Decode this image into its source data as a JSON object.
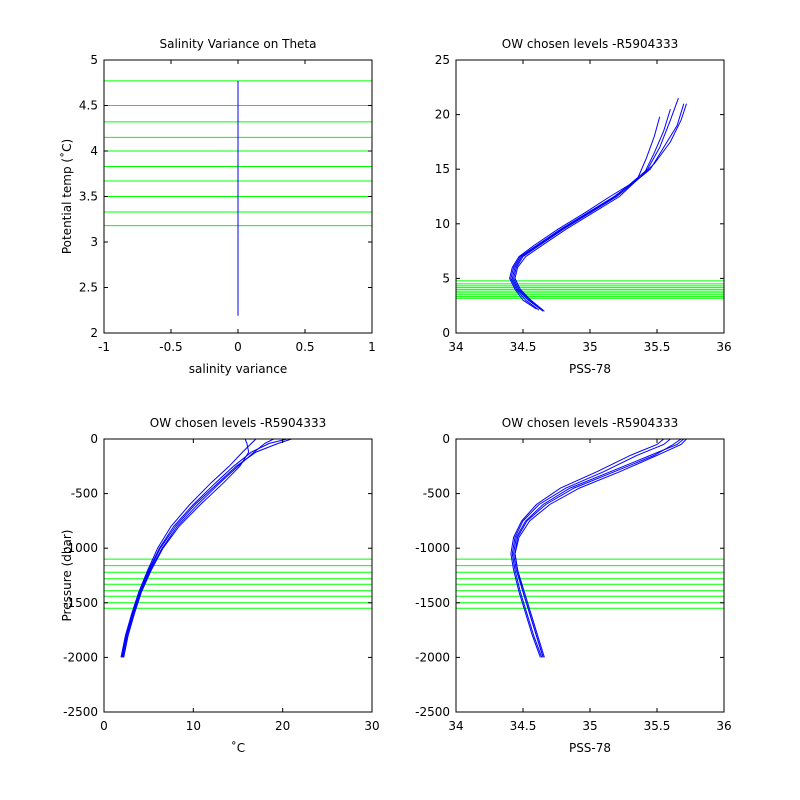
{
  "figure": {
    "background": "#ffffff",
    "profile_color": "#0000ff",
    "level_color": "#00ff00"
  },
  "chart_data": [
    {
      "type": "line",
      "title": "Salinity Variance on Theta",
      "xlabel": "salinity variance",
      "ylabel": "Potential temp (˚C)",
      "xlim": [
        -1,
        1
      ],
      "ylim": [
        2,
        5
      ],
      "xticks": [
        -1,
        -0.5,
        0,
        0.5,
        1
      ],
      "xtick_labels": [
        "-1",
        "-0.5",
        "0",
        "0.5",
        "1"
      ],
      "yticks": [
        2,
        2.5,
        3,
        3.5,
        4,
        4.5,
        5
      ],
      "ytick_labels": [
        "2",
        "2.5",
        "3",
        "3.5",
        "4",
        "4.5",
        "5"
      ],
      "grid": false,
      "legend": "none",
      "series": [
        {
          "x": [
            0,
            0
          ],
          "y": [
            2.19,
            4.77
          ]
        }
      ],
      "hlines": [
        3.18,
        3.33,
        3.5,
        3.67,
        3.83,
        4.0,
        4.15,
        4.32,
        4.5,
        4.77
      ]
    },
    {
      "type": "line",
      "title": "OW chosen levels -R5904333",
      "xlabel": "PSS-78",
      "ylabel": "",
      "xlim": [
        34,
        36
      ],
      "ylim": [
        0,
        25
      ],
      "xticks": [
        34,
        34.5,
        35,
        35.5,
        36
      ],
      "xtick_labels": [
        "34",
        "34.5",
        "35",
        "35.5",
        "36"
      ],
      "yticks": [
        0,
        5,
        10,
        15,
        20,
        25
      ],
      "ytick_labels": [
        "0",
        "5",
        "10",
        "15",
        "20",
        "25"
      ],
      "grid": false,
      "legend": "none",
      "series": [
        {
          "x": [
            34.65,
            34.55,
            34.47,
            34.43,
            34.45,
            34.5,
            34.62,
            34.8,
            35.0,
            35.2,
            35.45,
            35.55,
            35.65,
            35.7
          ],
          "y": [
            2.0,
            3.0,
            4.0,
            5.0,
            6.0,
            7.0,
            8.0,
            9.5,
            11.0,
            12.5,
            15.0,
            17.0,
            19.0,
            21.0
          ]
        },
        {
          "x": [
            34.62,
            34.52,
            34.45,
            34.41,
            34.43,
            34.48,
            34.6,
            34.78,
            34.98,
            35.18,
            35.4,
            35.48,
            35.55,
            35.6
          ],
          "y": [
            2.1,
            3.0,
            4.0,
            5.0,
            6.0,
            7.0,
            8.0,
            9.5,
            11.0,
            12.5,
            14.5,
            16.5,
            18.5,
            20.5
          ]
        },
        {
          "x": [
            34.66,
            34.56,
            34.48,
            34.44,
            34.46,
            34.52,
            34.64,
            34.82,
            35.02,
            35.22,
            35.48,
            35.6,
            35.68,
            35.72
          ],
          "y": [
            2.0,
            3.0,
            4.0,
            5.0,
            6.0,
            7.0,
            8.0,
            9.5,
            11.0,
            12.5,
            15.5,
            17.5,
            19.5,
            21.0
          ]
        },
        {
          "x": [
            34.6,
            34.5,
            34.44,
            34.4,
            34.42,
            34.47,
            34.58,
            34.76,
            34.96,
            35.15,
            35.35,
            35.42,
            35.48,
            35.52
          ],
          "y": [
            2.2,
            3.0,
            4.0,
            5.0,
            6.0,
            7.0,
            8.0,
            9.5,
            11.0,
            12.5,
            14.0,
            16.0,
            18.0,
            19.8
          ]
        },
        {
          "x": [
            34.64,
            34.54,
            34.46,
            34.42,
            34.44,
            34.49,
            34.61,
            34.79,
            34.99,
            35.19,
            35.43,
            35.52,
            35.6,
            35.66
          ],
          "y": [
            2.1,
            3.0,
            4.0,
            5.0,
            6.0,
            7.0,
            8.0,
            9.5,
            11.0,
            12.5,
            15.0,
            17.0,
            19.5,
            21.5
          ]
        }
      ],
      "hlines": [
        3.18,
        3.33,
        3.5,
        3.67,
        3.83,
        4.0,
        4.15,
        4.32,
        4.5,
        4.77
      ]
    },
    {
      "type": "line",
      "title": "OW chosen levels -R5904333",
      "xlabel": "˚C",
      "ylabel": "Pressure (dbar)",
      "xlim": [
        0,
        30
      ],
      "ylim": [
        -2500,
        0
      ],
      "xticks": [
        0,
        10,
        20,
        30
      ],
      "xtick_labels": [
        "0",
        "10",
        "20",
        "30"
      ],
      "yticks": [
        -2500,
        -2000,
        -1500,
        -1000,
        -500,
        0
      ],
      "ytick_labels": [
        "-2500",
        "-2000",
        "-1500",
        "-1000",
        "-500",
        "0"
      ],
      "grid": false,
      "legend": "none",
      "series": [
        {
          "x": [
            2.0,
            2.5,
            3.2,
            4.0,
            5.0,
            6.2,
            7.8,
            10.0,
            12.5,
            14.5,
            16.5,
            18.5,
            20.5
          ],
          "y": [
            -2000,
            -1800,
            -1600,
            -1400,
            -1200,
            -1000,
            -800,
            -600,
            -400,
            -250,
            -120,
            -40,
            0
          ]
        },
        {
          "x": [
            2.1,
            2.6,
            3.3,
            4.1,
            5.2,
            6.5,
            8.2,
            10.5,
            13.0,
            15.0,
            16.8,
            18.0,
            19.0
          ],
          "y": [
            -2000,
            -1800,
            -1600,
            -1400,
            -1200,
            -1000,
            -800,
            -600,
            -400,
            -250,
            -120,
            -40,
            0
          ]
        },
        {
          "x": [
            1.9,
            2.4,
            3.1,
            3.9,
            4.9,
            6.0,
            7.5,
            9.6,
            12.0,
            14.0,
            15.5,
            16.5,
            17.0
          ],
          "y": [
            -2000,
            -1800,
            -1600,
            -1400,
            -1200,
            -1000,
            -800,
            -600,
            -400,
            -250,
            -120,
            -40,
            0
          ]
        },
        {
          "x": [
            2.0,
            2.5,
            3.2,
            4.1,
            5.1,
            6.3,
            8.0,
            10.2,
            12.8,
            14.8,
            17.0,
            19.5,
            21.0
          ],
          "y": [
            -2000,
            -1800,
            -1600,
            -1400,
            -1200,
            -1000,
            -800,
            -600,
            -400,
            -250,
            -120,
            -40,
            0
          ]
        },
        {
          "x": [
            2.2,
            2.7,
            3.4,
            4.2,
            5.3,
            6.6,
            8.4,
            10.8,
            13.4,
            15.2,
            16.2,
            16.0,
            15.8
          ],
          "y": [
            -2000,
            -1800,
            -1600,
            -1400,
            -1200,
            -1000,
            -800,
            -600,
            -400,
            -250,
            -120,
            -40,
            0
          ]
        }
      ],
      "hlines": [
        -1100,
        -1160,
        -1220,
        -1280,
        -1330,
        -1390,
        -1440,
        -1500,
        -1550
      ]
    },
    {
      "type": "line",
      "title": "OW chosen levels -R5904333",
      "xlabel": "PSS-78",
      "ylabel": "",
      "xlim": [
        34,
        36
      ],
      "ylim": [
        -2500,
        0
      ],
      "xticks": [
        34,
        34.5,
        35,
        35.5,
        36
      ],
      "xtick_labels": [
        "34",
        "34.5",
        "35",
        "35.5",
        "36"
      ],
      "yticks": [
        -2500,
        -2000,
        -1500,
        -1000,
        -500,
        0
      ],
      "ytick_labels": [
        "-2500",
        "-2000",
        "-1500",
        "-1000",
        "-500",
        "0"
      ],
      "grid": false,
      "legend": "none",
      "series": [
        {
          "x": [
            34.65,
            34.6,
            34.55,
            34.5,
            34.45,
            34.43,
            34.45,
            34.52,
            34.65,
            34.85,
            35.15,
            35.45,
            35.65,
            35.7
          ],
          "y": [
            -2000,
            -1800,
            -1600,
            -1400,
            -1200,
            -1050,
            -900,
            -750,
            -600,
            -450,
            -300,
            -150,
            -50,
            0
          ]
        },
        {
          "x": [
            34.64,
            34.58,
            34.53,
            34.48,
            34.44,
            34.42,
            34.44,
            34.5,
            34.62,
            34.82,
            35.1,
            35.35,
            35.55,
            35.6
          ],
          "y": [
            -2000,
            -1800,
            -1600,
            -1400,
            -1200,
            -1050,
            -900,
            -750,
            -600,
            -450,
            -300,
            -150,
            -50,
            0
          ]
        },
        {
          "x": [
            34.66,
            34.61,
            34.56,
            34.51,
            34.46,
            34.44,
            34.47,
            34.55,
            34.7,
            34.92,
            35.22,
            35.5,
            35.68,
            35.72
          ],
          "y": [
            -2000,
            -1800,
            -1600,
            -1400,
            -1200,
            -1050,
            -900,
            -750,
            -600,
            -450,
            -300,
            -150,
            -50,
            0
          ]
        },
        {
          "x": [
            34.63,
            34.57,
            34.52,
            34.47,
            34.43,
            34.41,
            34.43,
            34.49,
            34.6,
            34.78,
            35.05,
            35.3,
            35.5,
            35.55
          ],
          "y": [
            -2000,
            -1800,
            -1600,
            -1400,
            -1200,
            -1050,
            -900,
            -750,
            -600,
            -450,
            -300,
            -150,
            -50,
            0
          ]
        },
        {
          "x": [
            34.65,
            34.6,
            34.55,
            34.5,
            34.46,
            34.44,
            34.46,
            34.53,
            34.67,
            34.88,
            35.18,
            35.48,
            35.62,
            35.68
          ],
          "y": [
            -2000,
            -1800,
            -1600,
            -1400,
            -1200,
            -1050,
            -900,
            -750,
            -600,
            -450,
            -300,
            -150,
            -50,
            0
          ]
        }
      ],
      "hlines": [
        -1100,
        -1160,
        -1220,
        -1280,
        -1330,
        -1390,
        -1440,
        -1500,
        -1550
      ]
    }
  ]
}
